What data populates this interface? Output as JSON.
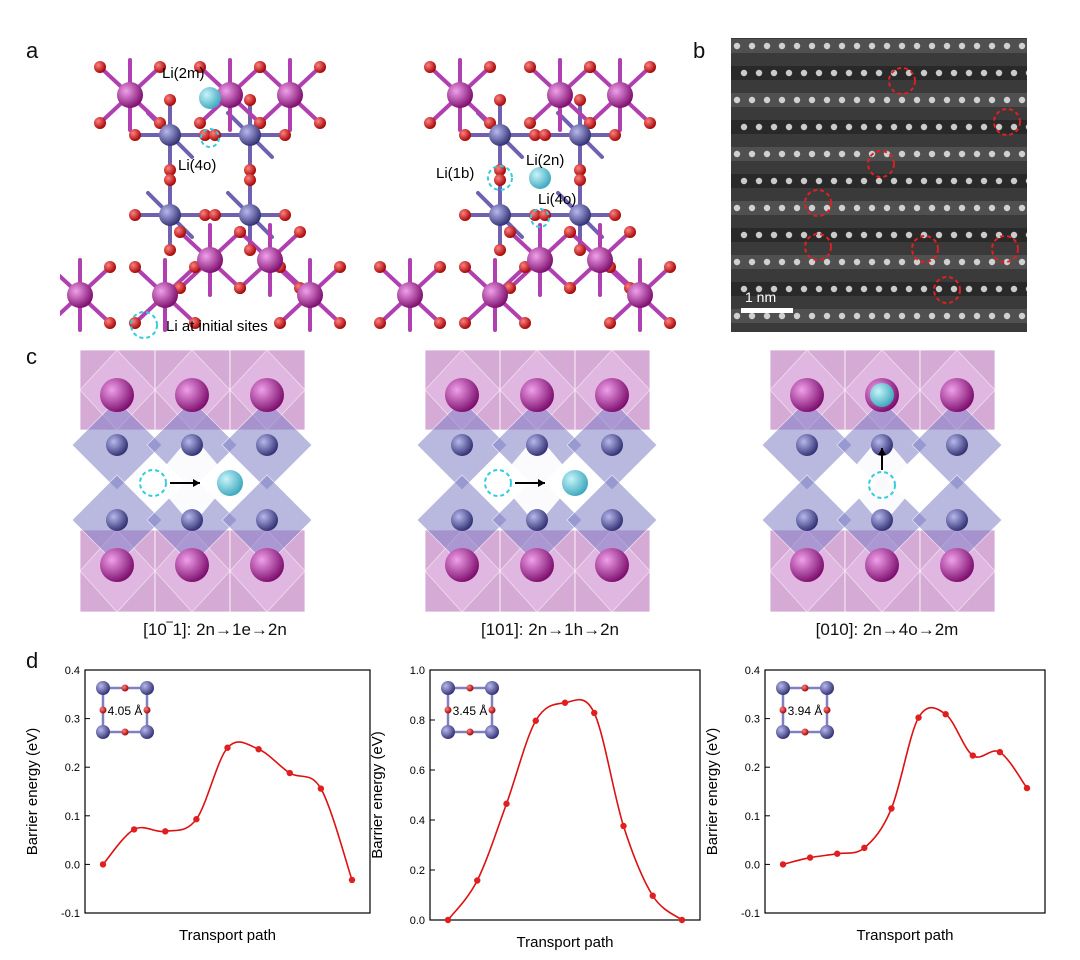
{
  "panels": {
    "a": {
      "letter": "a",
      "labels": {
        "li_2m": "Li(2m)",
        "li_4o_left": "Li(4o)",
        "li_1b": "Li(1b)",
        "li_2n": "Li(2n)",
        "li_4o_right": "Li(4o)"
      },
      "legend": "Li at initial sites"
    },
    "b": {
      "letter": "b",
      "scale_bar": "1 nm"
    },
    "c": {
      "letter": "c",
      "captions": [
        "[10‾1]: 2n→1e→2n",
        "[101]: 2n→1h→2n",
        "[010]: 2n→4o→2m"
      ]
    },
    "d": {
      "letter": "d"
    }
  },
  "colors": {
    "oxygen": "#cc1111",
    "metal_blue": "#4a4a8c",
    "metal_magenta": "#a0208a",
    "lithium": "#58c8d8",
    "curve": "#dd1111",
    "octa_light": "#d9a9d6",
    "octa_blue": "#8a8cc8"
  },
  "chart_data": [
    {
      "type": "line",
      "title": "",
      "xlabel": "Transport path",
      "ylabel": "Barrier energy (eV)",
      "ylim": [
        -0.1,
        0.4
      ],
      "yticks": [
        "-0.1",
        "0.0",
        "0.1",
        "0.2",
        "0.3",
        "0.4"
      ],
      "inset_label": "4.05 Å",
      "series": [
        {
          "x": [
            0,
            1,
            2,
            3,
            4,
            5,
            6,
            7,
            8
          ],
          "values": [
            0.0,
            0.072,
            0.068,
            0.093,
            0.24,
            0.237,
            0.188,
            0.156,
            -0.032
          ]
        }
      ]
    },
    {
      "type": "line",
      "title": "",
      "xlabel": "Transport path",
      "ylabel": "Barrier energy (eV)",
      "ylim": [
        0.0,
        1.0
      ],
      "yticks": [
        "0.0",
        "0.2",
        "0.4",
        "0.6",
        "0.8",
        "1.0"
      ],
      "inset_label": "3.45 Å",
      "series": [
        {
          "x": [
            0,
            1,
            2,
            3,
            4,
            5,
            6,
            7,
            8
          ],
          "values": [
            0.0,
            0.158,
            0.465,
            0.797,
            0.869,
            0.828,
            0.376,
            0.097,
            0.0
          ]
        }
      ]
    },
    {
      "type": "line",
      "title": "",
      "xlabel": "Transport path",
      "ylabel": "Barrier energy (eV)",
      "ylim": [
        -0.1,
        0.4
      ],
      "yticks": [
        "-0.1",
        "0.0",
        "0.1",
        "0.2",
        "0.3",
        "0.4"
      ],
      "inset_label": "3.94 Å",
      "series": [
        {
          "x": [
            0,
            1,
            2,
            3,
            4,
            5,
            6,
            7,
            8,
            9
          ],
          "values": [
            0.0,
            0.014,
            0.022,
            0.034,
            0.115,
            0.302,
            0.309,
            0.224,
            0.231,
            0.157
          ]
        }
      ]
    }
  ]
}
